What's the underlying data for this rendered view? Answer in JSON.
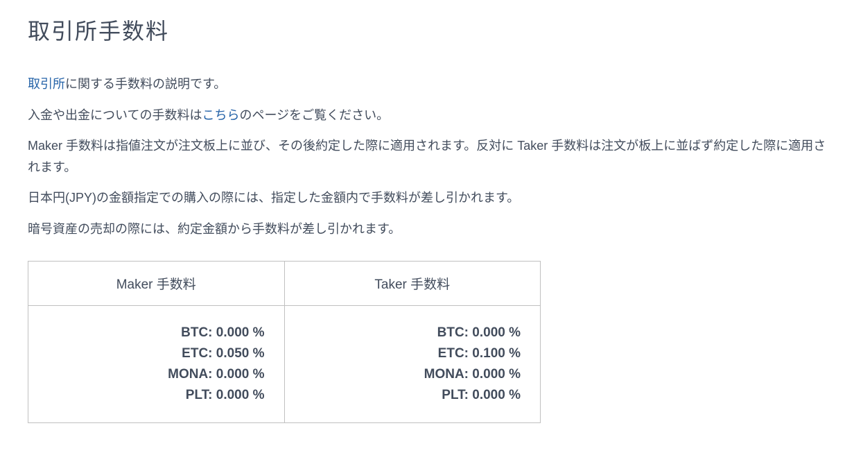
{
  "page_title": "取引所手数料",
  "paragraph1": {
    "link_text": "取引所",
    "rest": "に関する手数料の説明です。"
  },
  "paragraph2": {
    "prefix": "入金や出金についての手数料は",
    "link_text": "こちら",
    "suffix": "のページをご覧ください。"
  },
  "paragraph3": "Maker 手数料は指値注文が注文板上に並び、その後約定した際に適用されます。反対に Taker 手数料は注文が板上に並ばず約定した際に適用されます。",
  "paragraph4": "日本円(JPY)の金額指定での購入の際には、指定した金額内で手数料が差し引かれます。",
  "paragraph5": "暗号資産の売却の際には、約定金額から手数料が差し引かれます。",
  "fee_table": {
    "columns": [
      "Maker 手数料",
      "Taker 手数料"
    ],
    "rows": [
      {
        "maker": [
          "BTC: 0.000 %",
          "ETC: 0.050 %",
          "MONA: 0.000 %",
          "PLT: 0.000 %"
        ],
        "taker": [
          "BTC: 0.000 %",
          "ETC: 0.100 %",
          "MONA: 0.000 %",
          "PLT: 0.000 %"
        ]
      }
    ],
    "border_color": "#c0c0c0",
    "text_color": "#424c5c",
    "background_color": "#ffffff",
    "header_fontsize": 19,
    "body_fontsize": 19,
    "body_fontweight": 700
  },
  "colors": {
    "heading": "#424c5c",
    "body_text": "#424c5c",
    "link": "#2563a8",
    "background": "#ffffff"
  }
}
